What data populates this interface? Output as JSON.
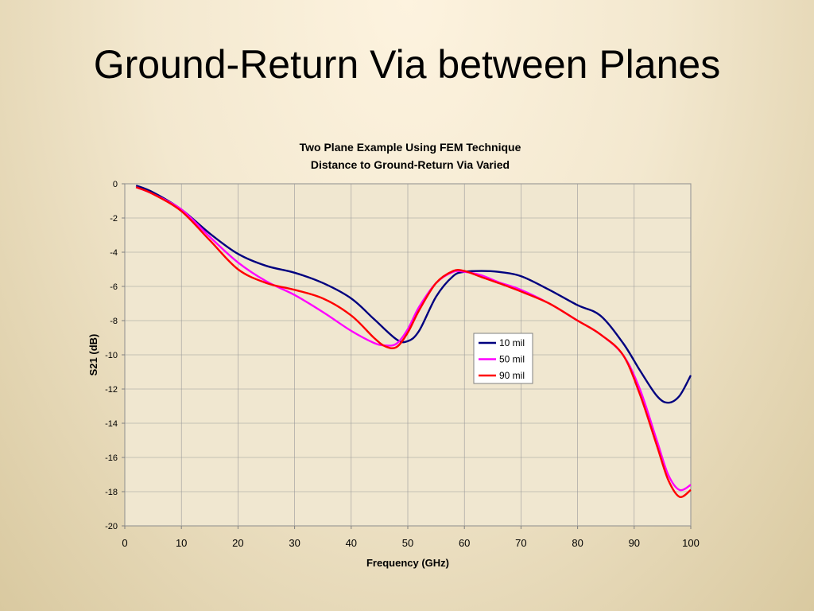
{
  "slide": {
    "title": "Ground-Return Via between Planes"
  },
  "chart_data": {
    "type": "line",
    "title": "Two Plane Example Using FEM Technique",
    "subtitle": "Distance to Ground-Return Via Varied",
    "xlabel": "Frequency (GHz)",
    "ylabel": "S21 (dB)",
    "xlim": [
      0,
      100
    ],
    "ylim": [
      -20,
      0
    ],
    "xticks": [
      0,
      10,
      20,
      30,
      40,
      50,
      60,
      70,
      80,
      90,
      100
    ],
    "yticks": [
      0,
      -2,
      -4,
      -6,
      -8,
      -10,
      -12,
      -14,
      -16,
      -18,
      -20
    ],
    "grid": true,
    "legend_position": "center-right",
    "series": [
      {
        "name": "10 mil",
        "color": "#00007f",
        "x": [
          2,
          5,
          10,
          15,
          20,
          25,
          30,
          35,
          40,
          44,
          48,
          50,
          52,
          55,
          58,
          60,
          63,
          66,
          70,
          75,
          80,
          84,
          88,
          91,
          94,
          96,
          98,
          100
        ],
        "y": [
          -0.1,
          -0.5,
          -1.5,
          -2.9,
          -4.1,
          -4.8,
          -5.2,
          -5.8,
          -6.7,
          -7.9,
          -9.1,
          -9.2,
          -8.6,
          -6.6,
          -5.4,
          -5.15,
          -5.1,
          -5.15,
          -5.4,
          -6.2,
          -7.1,
          -7.7,
          -9.3,
          -10.9,
          -12.4,
          -12.8,
          -12.4,
          -11.2
        ]
      },
      {
        "name": "50 mil",
        "color": "#ff00ff",
        "x": [
          2,
          5,
          10,
          15,
          20,
          25,
          30,
          35,
          40,
          44,
          46,
          48,
          50,
          52,
          55,
          58,
          60,
          63,
          66,
          70,
          75,
          80,
          84,
          88,
          91,
          94,
          96,
          98,
          100
        ],
        "y": [
          -0.2,
          -0.6,
          -1.5,
          -3.1,
          -4.6,
          -5.7,
          -6.5,
          -7.5,
          -8.6,
          -9.3,
          -9.45,
          -9.35,
          -8.5,
          -7.2,
          -5.8,
          -5.15,
          -5.15,
          -5.35,
          -5.75,
          -6.2,
          -7.0,
          -8.0,
          -8.8,
          -10.0,
          -12.0,
          -15.0,
          -17.0,
          -17.9,
          -17.6
        ]
      },
      {
        "name": "90 mil",
        "color": "#ff0000",
        "x": [
          2,
          5,
          10,
          15,
          20,
          25,
          30,
          35,
          40,
          44,
          46,
          48,
          50,
          52,
          55,
          58,
          60,
          63,
          66,
          70,
          75,
          80,
          84,
          88,
          91,
          94,
          96,
          98,
          100
        ],
        "y": [
          -0.2,
          -0.6,
          -1.6,
          -3.3,
          -5.0,
          -5.8,
          -6.2,
          -6.7,
          -7.7,
          -9.0,
          -9.5,
          -9.55,
          -8.7,
          -7.4,
          -5.8,
          -5.1,
          -5.1,
          -5.45,
          -5.8,
          -6.3,
          -7.0,
          -8.0,
          -8.8,
          -10.0,
          -12.3,
          -15.3,
          -17.3,
          -18.3,
          -17.9
        ]
      }
    ]
  }
}
